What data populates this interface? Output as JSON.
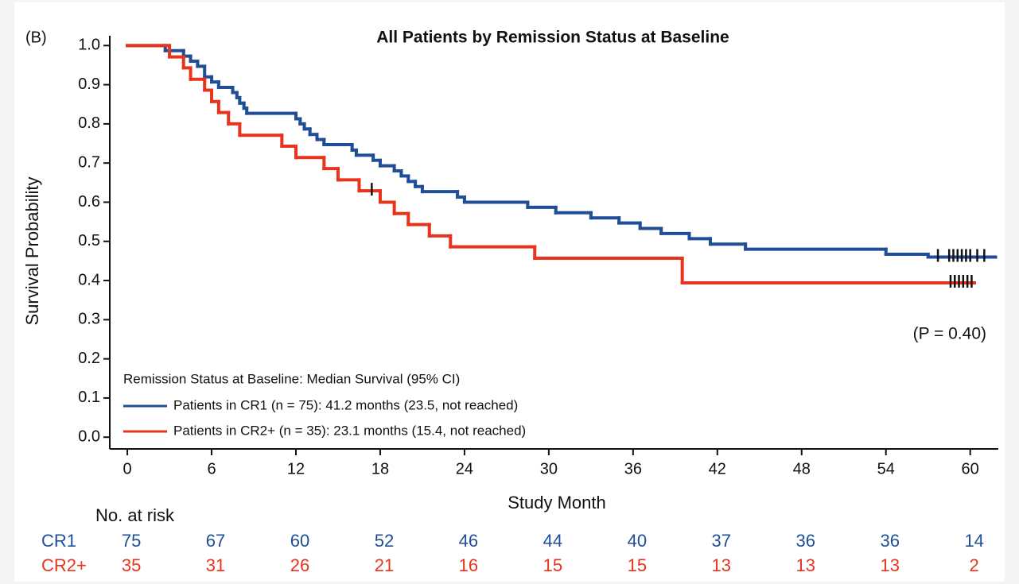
{
  "chart_data": {
    "type": "kaplan-meier",
    "panel_label": "(B)",
    "title": "All Patients by Remission Status at Baseline",
    "xlabel": "Study Month",
    "ylabel": "Survival Probability",
    "annotation": "(P = 0.40)",
    "xlim": [
      -1.25,
      62
    ],
    "ylim": [
      -0.03,
      1.025
    ],
    "xticks": [
      0,
      6,
      12,
      18,
      24,
      30,
      36,
      42,
      48,
      54,
      60
    ],
    "yticks": [
      {
        "value": 0,
        "label": "0.0"
      },
      0.1,
      0.2,
      0.3,
      0.4,
      0.5,
      0.6,
      0.7,
      0.8,
      0.9,
      {
        "value": 1,
        "label": "1.0"
      }
    ],
    "legend_title": "Remission Status at Baseline: Median Survival (95% CI)",
    "series": [
      {
        "name": "Patients in CR1 (n = 75): 41.2 months (23.5, not reached)",
        "color": "#1f4e96",
        "x": [
          0,
          2.7,
          4,
          4.5,
          5,
          5.5,
          6,
          6.5,
          7.5,
          7.8,
          8,
          8.3,
          8.5,
          12,
          12.3,
          12.6,
          13,
          13.5,
          14,
          16,
          16.3,
          17.5,
          18,
          19,
          19.5,
          20,
          20.5,
          21,
          23.5,
          24,
          28.5,
          30.5,
          33,
          35,
          36.5,
          38,
          40,
          41.5,
          44,
          54,
          57,
          61.8
        ],
        "values": [
          1,
          0.987,
          0.973,
          0.96,
          0.947,
          0.92,
          0.907,
          0.893,
          0.88,
          0.867,
          0.853,
          0.84,
          0.827,
          0.813,
          0.8,
          0.787,
          0.773,
          0.76,
          0.747,
          0.733,
          0.72,
          0.707,
          0.693,
          0.68,
          0.667,
          0.653,
          0.64,
          0.627,
          0.613,
          0.6,
          0.587,
          0.573,
          0.56,
          0.547,
          0.533,
          0.52,
          0.507,
          0.493,
          0.48,
          0.467,
          0.46,
          0.46
        ],
        "censored": [
          57.7,
          58.5,
          58.8,
          59.1,
          59.4,
          59.7,
          60,
          60.5,
          61
        ]
      },
      {
        "name": "Patients in CR2+ (n = 35): 23.1 months (15.4, not reached)",
        "color": "#e8341c",
        "x": [
          0,
          3,
          4,
          4.5,
          5.5,
          6,
          6.5,
          7.2,
          8,
          11,
          12,
          14,
          15,
          16.5,
          18,
          19,
          20,
          21.5,
          23,
          29,
          39.5,
          60.3
        ],
        "values": [
          1,
          0.971,
          0.943,
          0.914,
          0.886,
          0.857,
          0.829,
          0.8,
          0.771,
          0.743,
          0.714,
          0.686,
          0.657,
          0.629,
          0.6,
          0.571,
          0.543,
          0.514,
          0.486,
          0.457,
          0.394,
          0.394
        ],
        "censored": [
          17.4,
          58.6,
          58.9,
          59.2,
          59.5,
          59.8,
          60.1
        ]
      }
    ],
    "risk_table": {
      "title": "No. at risk",
      "rows": [
        {
          "label": "CR1",
          "color": "#1f4e96",
          "counts": [
            75,
            67,
            60,
            52,
            46,
            44,
            40,
            37,
            36,
            36,
            14
          ]
        },
        {
          "label": "CR2+",
          "color": "#e8341c",
          "counts": [
            35,
            31,
            26,
            21,
            16,
            15,
            15,
            13,
            13,
            13,
            2
          ]
        }
      ]
    }
  }
}
